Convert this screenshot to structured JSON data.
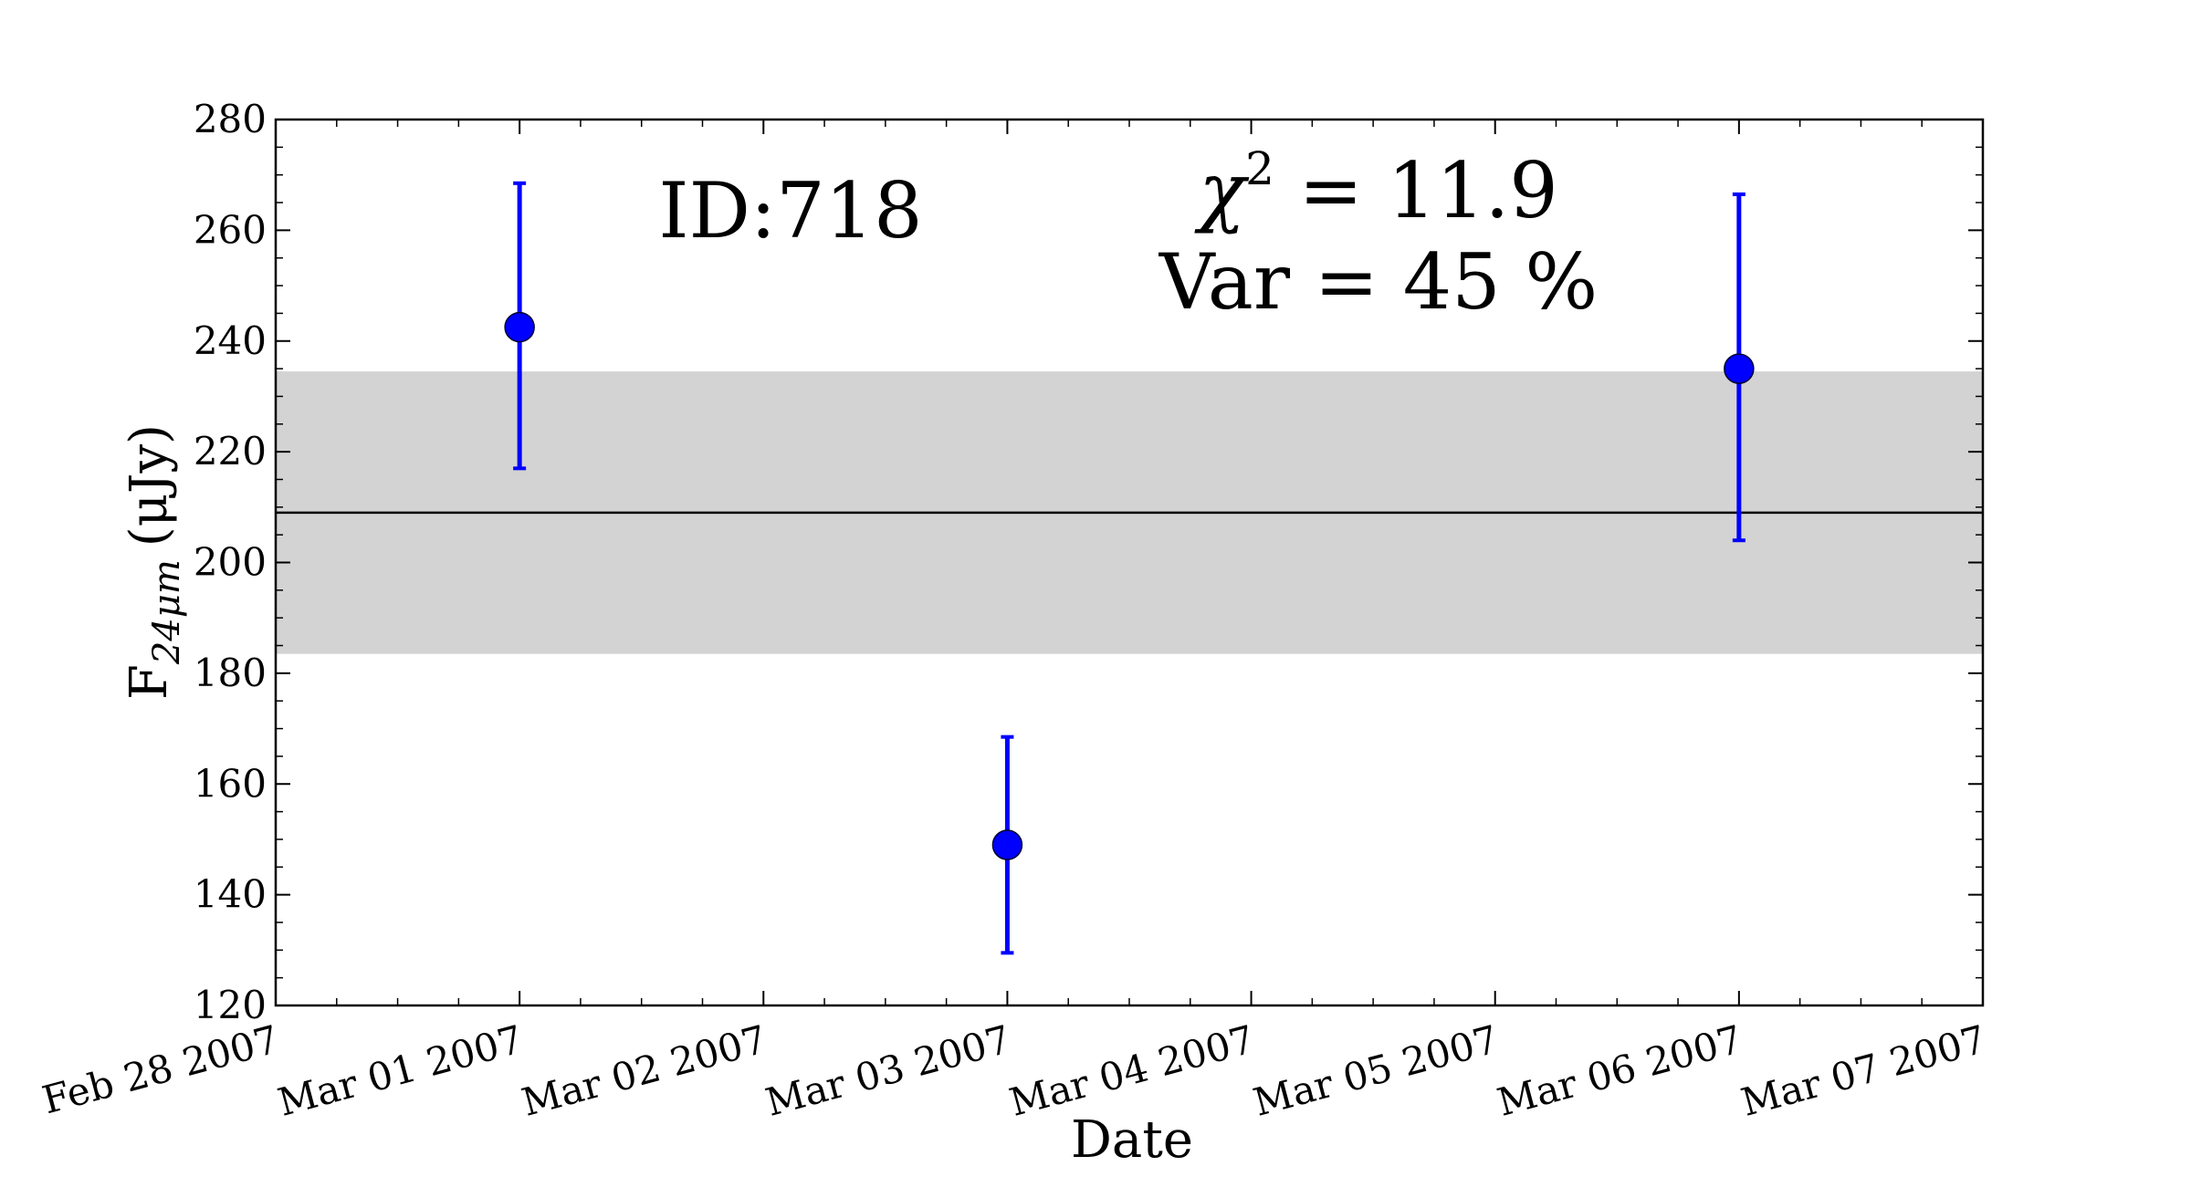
{
  "chart_data": {
    "type": "scatter",
    "title": "",
    "xlabel": "Date",
    "ylabel": {
      "main": "F",
      "subscript": "24μm",
      "unit": "(μJy)"
    },
    "x_ticks": [
      "Feb 28 2007",
      "Mar 01 2007",
      "Mar 02 2007",
      "Mar 03 2007",
      "Mar 04 2007",
      "Mar 05 2007",
      "Mar 06 2007",
      "Mar 07 2007"
    ],
    "xlim": [
      "2007-02-28T00:00",
      "2007-03-07T00:00"
    ],
    "ylim": [
      120,
      280
    ],
    "y_ticks": [
      120,
      140,
      160,
      180,
      200,
      220,
      240,
      260,
      280
    ],
    "series": [
      {
        "marker_color": "#0000ff",
        "points": [
          {
            "x": "2007-03-01T00:00",
            "y": 242.5,
            "yerr_low": 217,
            "yerr_high": 268.5
          },
          {
            "x": "2007-03-03T00:00",
            "y": 149,
            "yerr_low": 129.5,
            "yerr_high": 168.5
          },
          {
            "x": "2007-03-06T00:00",
            "y": 235,
            "yerr_low": 204,
            "yerr_high": 266.5
          }
        ]
      }
    ],
    "mean_line": {
      "y": 209,
      "color": "#000000"
    },
    "band": {
      "y_low": 183.5,
      "y_high": 234.5,
      "color": "#d3d3d3"
    },
    "annotations": {
      "id": "ID:718",
      "chi2_symbol": "χ",
      "chi2_exp": "2",
      "chi2_value": " = 11.9",
      "var": "Var = 45 %"
    },
    "grid": false,
    "legend": "none"
  }
}
